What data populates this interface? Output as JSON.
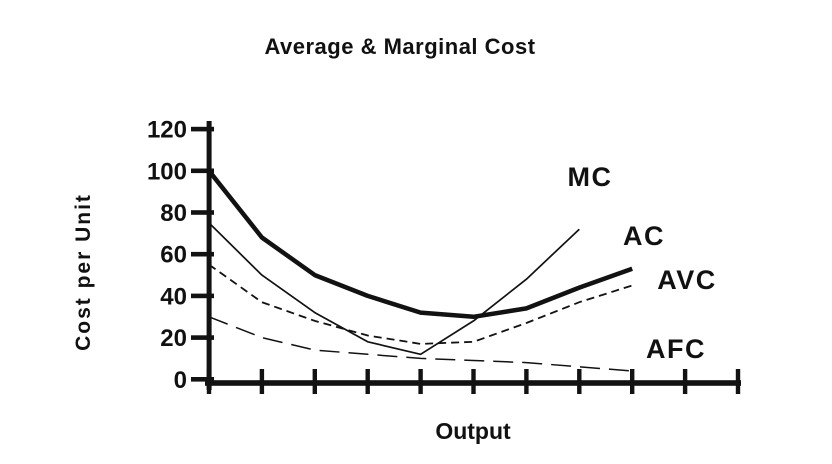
{
  "title": "Average & Marginal Cost",
  "chart_data": {
    "type": "line",
    "title": "Average & Marginal Cost",
    "xlabel": "Output",
    "ylabel": "Cost per Unit",
    "ylim": [
      0,
      120
    ],
    "yticks": [
      120,
      100,
      80,
      60,
      40,
      20,
      0
    ],
    "x_ticks": {
      "count": 11,
      "labeled": false
    },
    "grid": false,
    "legend_position": "inline-labels-right-of-curves",
    "background_color": "#ffffff",
    "line_color": "#121212",
    "series": [
      {
        "name": "MC",
        "style": "solid-thin",
        "x": [
          1,
          2,
          3,
          4,
          5,
          6,
          7,
          8
        ],
        "values": [
          75,
          50,
          32,
          18,
          12,
          28,
          48,
          72
        ]
      },
      {
        "name": "AC",
        "style": "solid-thick",
        "x": [
          1,
          2,
          3,
          4,
          5,
          6,
          7,
          8,
          9
        ],
        "values": [
          100,
          68,
          50,
          40,
          32,
          30,
          34,
          44,
          53
        ]
      },
      {
        "name": "AVC",
        "style": "dashed",
        "x": [
          1,
          2,
          3,
          4,
          5,
          6,
          7,
          8,
          9
        ],
        "values": [
          55,
          37,
          28,
          21,
          17,
          18,
          27,
          37,
          45
        ]
      },
      {
        "name": "AFC",
        "style": "long-dash",
        "x": [
          1,
          2,
          3,
          4,
          5,
          6,
          7,
          8,
          9
        ],
        "values": [
          30,
          20,
          14,
          12,
          10,
          9,
          8,
          6,
          4
        ]
      }
    ]
  }
}
